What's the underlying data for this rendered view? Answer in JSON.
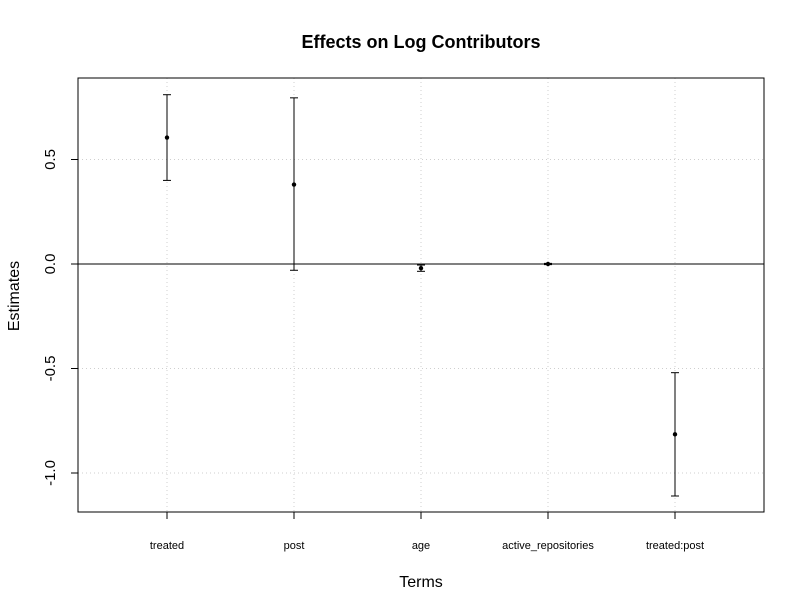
{
  "chart_data": {
    "type": "scatter",
    "title": "Effects on Log Contributors",
    "xlabel": "Terms",
    "ylabel": "Estimates",
    "categories": [
      "treated",
      "post",
      "age",
      "active_repositories",
      "treated:post"
    ],
    "estimates": [
      0.605,
      0.38,
      -0.02,
      0.0,
      -0.815
    ],
    "ci_lower": [
      0.4,
      -0.03,
      -0.035,
      -0.003,
      -1.11
    ],
    "ci_upper": [
      0.81,
      0.795,
      -0.005,
      0.003,
      -0.52
    ],
    "yticks": [
      -1.0,
      -0.5,
      0.0,
      0.5
    ],
    "ytick_labels": [
      "-1.0",
      "-0.5",
      "0.0",
      "0.5"
    ],
    "ylim": [
      -1.18,
      0.88
    ],
    "reference_line": 0,
    "grid": true
  }
}
